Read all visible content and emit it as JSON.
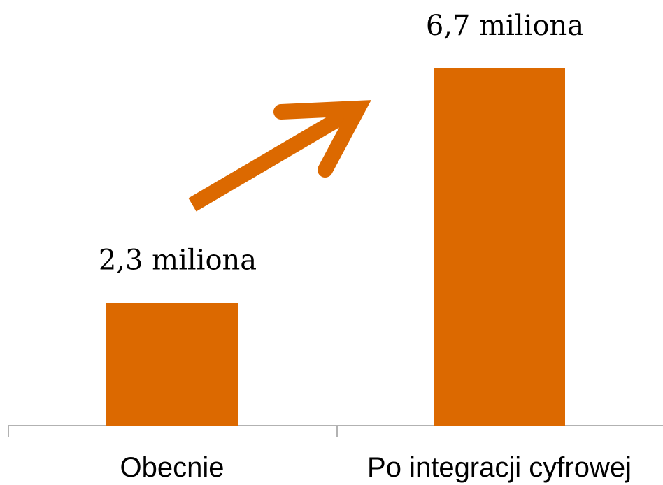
{
  "chart_data": {
    "type": "bar",
    "categories": [
      "Obecnie",
      "Po integracji cyfrowej"
    ],
    "values": [
      2.3,
      6.7
    ],
    "value_labels": [
      "2,3 miliona",
      "6,7 miliona"
    ],
    "color": "#dc6900"
  }
}
